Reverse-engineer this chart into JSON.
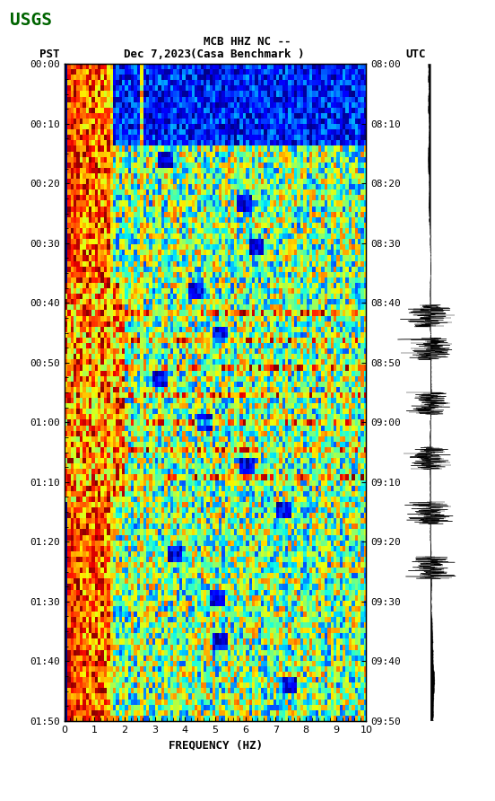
{
  "title_line1": "MCB HHZ NC --",
  "title_line2": "(Casa Benchmark )",
  "date_label": "Dec 7,2023",
  "left_time_label": "PST",
  "right_time_label": "UTC",
  "xlabel": "FREQUENCY (HZ)",
  "freq_min": 0,
  "freq_max": 10,
  "freq_ticks": [
    0,
    1,
    2,
    3,
    4,
    5,
    6,
    7,
    8,
    9,
    10
  ],
  "time_ticks_left": [
    "00:00",
    "00:10",
    "00:20",
    "00:30",
    "00:40",
    "00:50",
    "01:00",
    "01:10",
    "01:20",
    "01:30",
    "01:40",
    "01:50"
  ],
  "time_ticks_right": [
    "08:00",
    "08:10",
    "08:20",
    "08:30",
    "08:40",
    "08:50",
    "09:00",
    "09:10",
    "09:20",
    "09:30",
    "09:40",
    "09:50"
  ],
  "n_time": 120,
  "n_freq": 100,
  "bg_color": "#ffffff",
  "spectrogram_cmap": "jet",
  "seed": 42
}
